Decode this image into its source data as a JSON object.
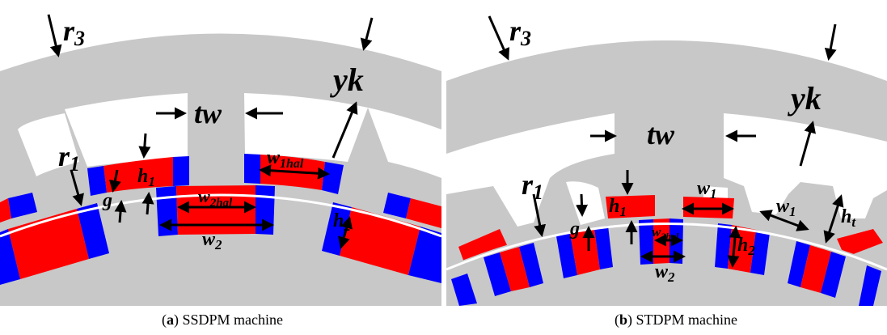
{
  "colors": {
    "core": "#c8c8c8",
    "slot": "#ffffff",
    "magnet_red": "#ff0000",
    "magnet_blue": "#0000ff",
    "gap_line": "#ffffff",
    "arrow": "#000000"
  },
  "panel_a": {
    "labels": {
      "r3": "r",
      "r3_sub": "3",
      "yk": "yk",
      "tw": "tw",
      "r1": "r",
      "r1_sub": "1",
      "h1": "h",
      "h1_sub": "1",
      "g": "g",
      "w1hal": "w",
      "w1hal_sub": "1hal",
      "w2hal": "w",
      "w2hal_sub": "2hal",
      "w2": "w",
      "w2_sub": "2",
      "h2": "h",
      "h2_sub": "2"
    },
    "caption": {
      "letter": "a",
      "text": "SSDPM machine"
    }
  },
  "panel_b": {
    "labels": {
      "r3": "r",
      "r3_sub": "3",
      "yk": "yk",
      "tw": "tw",
      "r1": "r",
      "r1_sub": "1",
      "h1": "h",
      "h1_sub": "1",
      "g": "g",
      "w1_top": "w",
      "w1_top_sub": "1",
      "w1_right": "w",
      "w1_right_sub": "1",
      "w2hal": "w",
      "w2hal_sub": "2hal",
      "w2": "w",
      "w2_sub": "2",
      "h2": "h",
      "h2_sub": "2",
      "ht": "h",
      "ht_sub": "t"
    },
    "caption": {
      "letter": "b",
      "text": "STDPM machine"
    }
  }
}
